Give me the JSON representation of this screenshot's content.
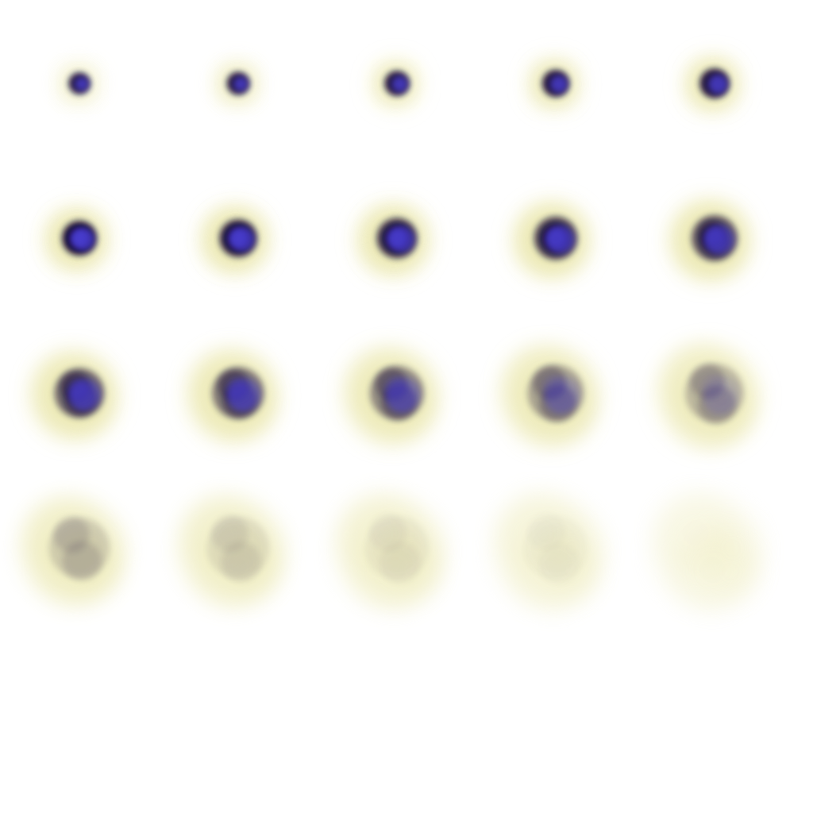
{
  "sprite_sheet": {
    "frame_count": 20,
    "columns": 5,
    "rows": 4,
    "colors": {
      "background": "#ffffff",
      "core": "#0a0630",
      "core_blue": "#4b3fd6",
      "glow": "#ece9b4"
    },
    "frames": [
      {
        "core": 0.9,
        "blue": 0.9,
        "glow": 0.35,
        "spread": 0.1
      },
      {
        "core": 0.9,
        "blue": 0.9,
        "glow": 0.45,
        "spread": 0.12
      },
      {
        "core": 0.9,
        "blue": 0.9,
        "glow": 0.55,
        "spread": 0.16
      },
      {
        "core": 0.9,
        "blue": 0.9,
        "glow": 0.6,
        "spread": 0.2
      },
      {
        "core": 0.9,
        "blue": 0.9,
        "glow": 0.65,
        "spread": 0.25
      },
      {
        "core": 0.85,
        "blue": 0.85,
        "glow": 0.7,
        "spread": 0.35
      },
      {
        "core": 0.8,
        "blue": 0.8,
        "glow": 0.72,
        "spread": 0.4
      },
      {
        "core": 0.75,
        "blue": 0.75,
        "glow": 0.72,
        "spread": 0.45
      },
      {
        "core": 0.7,
        "blue": 0.7,
        "glow": 0.72,
        "spread": 0.5
      },
      {
        "core": 0.62,
        "blue": 0.6,
        "glow": 0.72,
        "spread": 0.55
      },
      {
        "core": 0.55,
        "blue": 0.55,
        "glow": 0.7,
        "spread": 0.62
      },
      {
        "core": 0.48,
        "blue": 0.5,
        "glow": 0.68,
        "spread": 0.66
      },
      {
        "core": 0.4,
        "blue": 0.4,
        "glow": 0.64,
        "spread": 0.7
      },
      {
        "core": 0.3,
        "blue": 0.25,
        "glow": 0.6,
        "spread": 0.74
      },
      {
        "core": 0.22,
        "blue": 0.12,
        "glow": 0.55,
        "spread": 0.78
      },
      {
        "core": 0.14,
        "blue": 0.0,
        "glow": 0.48,
        "spread": 0.82
      },
      {
        "core": 0.08,
        "blue": 0.0,
        "glow": 0.42,
        "spread": 0.85
      },
      {
        "core": 0.04,
        "blue": 0.0,
        "glow": 0.36,
        "spread": 0.88
      },
      {
        "core": 0.02,
        "blue": 0.0,
        "glow": 0.28,
        "spread": 0.9
      },
      {
        "core": 0.0,
        "blue": 0.0,
        "glow": 0.2,
        "spread": 0.92
      }
    ]
  }
}
